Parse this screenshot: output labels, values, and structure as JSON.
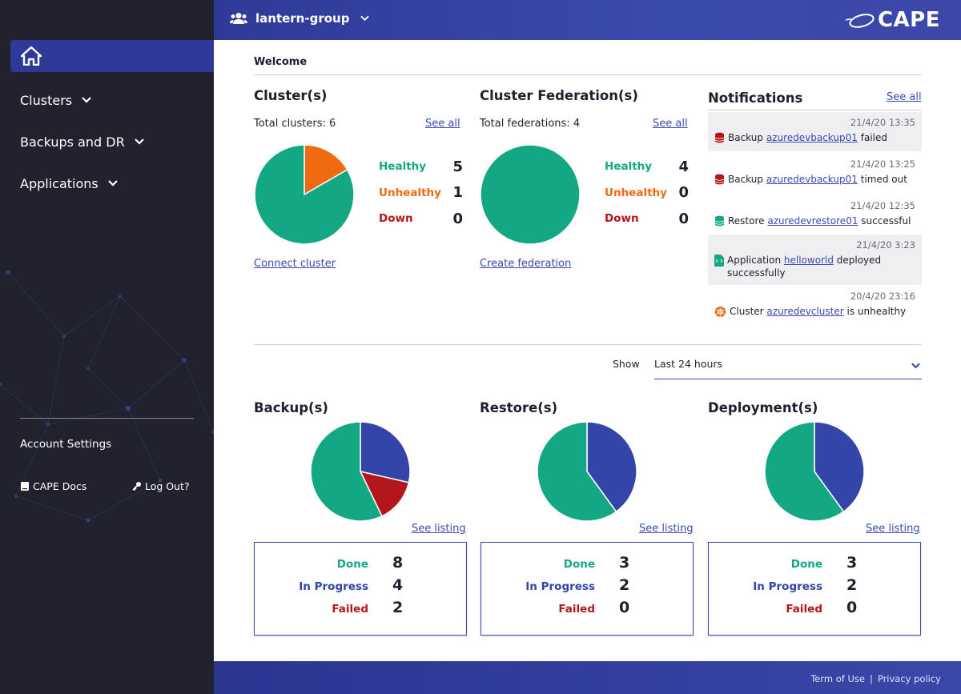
{
  "header": {
    "group_name": "lantern-group",
    "brand": "CAPE"
  },
  "sidebar": {
    "items": [
      {
        "label": "Clusters"
      },
      {
        "label": "Backups and DR"
      },
      {
        "label": "Applications"
      }
    ],
    "account_settings": "Account Settings",
    "docs": "CAPE Docs",
    "logout": "Log Out?"
  },
  "main": {
    "welcome": "Welcome",
    "clusters": {
      "title": "Cluster(s)",
      "total": "Total clusters: 6",
      "see_all": "See all",
      "action": "Connect cluster",
      "legend": [
        {
          "label": "Healthy",
          "value": "5"
        },
        {
          "label": "Unhealthy",
          "value": "1"
        },
        {
          "label": "Down",
          "value": "0"
        }
      ]
    },
    "federations": {
      "title": "Cluster Federation(s)",
      "total": "Total federations: 4",
      "see_all": "See all",
      "action": "Create federation",
      "legend": [
        {
          "label": "Healthy",
          "value": "4"
        },
        {
          "label": "Unhealthy",
          "value": "0"
        },
        {
          "label": "Down",
          "value": "0"
        }
      ]
    },
    "notifications": {
      "title": "Notifications",
      "see_all": "See all",
      "items": [
        {
          "time": "21/4/20 13:35",
          "prefix": "Backup",
          "link": "azuredevbackup01",
          "suffix": "failed",
          "icon": "database-icon"
        },
        {
          "time": "21/4/20 13:25",
          "prefix": "Backup",
          "link": "azuredevbackup01",
          "suffix": "timed out",
          "icon": "database-icon"
        },
        {
          "time": "21/4/20 12:35",
          "prefix": "Restore",
          "link": "azuredevrestore01",
          "suffix": "successful",
          "icon": "database-icon"
        },
        {
          "time": "21/4/20 3:23",
          "prefix": "Application",
          "link": "helloworld",
          "suffix": "deployed successfully",
          "icon": "code-file-icon"
        },
        {
          "time": "20/4/20 23:16",
          "prefix": "Cluster",
          "link": "azuredevcluster",
          "suffix": "is unhealthy",
          "icon": "helm-icon"
        }
      ]
    },
    "filter": {
      "label": "Show",
      "value": "Last 24 hours"
    },
    "backups": {
      "title": "Backup(s)",
      "see_listing": "See listing",
      "stats": [
        {
          "label": "Done",
          "value": "8"
        },
        {
          "label": "In Progress",
          "value": "4"
        },
        {
          "label": "Failed",
          "value": "2"
        }
      ]
    },
    "restores": {
      "title": "Restore(s)",
      "see_listing": "See listing",
      "stats": [
        {
          "label": "Done",
          "value": "3"
        },
        {
          "label": "In Progress",
          "value": "2"
        },
        {
          "label": "Failed",
          "value": "0"
        }
      ]
    },
    "deployments": {
      "title": "Deployment(s)",
      "see_listing": "See listing",
      "stats": [
        {
          "label": "Done",
          "value": "3"
        },
        {
          "label": "In Progress",
          "value": "2"
        },
        {
          "label": "Failed",
          "value": "0"
        }
      ]
    }
  },
  "footer": {
    "terms": "Term of Use",
    "separator": "|",
    "privacy": "Privacy policy"
  },
  "colors": {
    "healthy": "#13a883",
    "unhealthy": "#f06a11",
    "down": "#b3171b",
    "in_progress": "#3345a8",
    "accent": "#2f3a98",
    "sidebar_bg": "#22222e"
  },
  "chart_data": [
    {
      "type": "pie",
      "name": "clusters",
      "categories": [
        "Healthy",
        "Unhealthy",
        "Down"
      ],
      "values": [
        5,
        1,
        0
      ]
    },
    {
      "type": "pie",
      "name": "federations",
      "categories": [
        "Healthy",
        "Unhealthy",
        "Down"
      ],
      "values": [
        4,
        0,
        0
      ]
    },
    {
      "type": "pie",
      "name": "backups",
      "categories": [
        "Done",
        "In Progress",
        "Failed"
      ],
      "values": [
        8,
        4,
        2
      ]
    },
    {
      "type": "pie",
      "name": "restores",
      "categories": [
        "Done",
        "In Progress",
        "Failed"
      ],
      "values": [
        3,
        2,
        0
      ]
    },
    {
      "type": "pie",
      "name": "deployments",
      "categories": [
        "Done",
        "In Progress",
        "Failed"
      ],
      "values": [
        3,
        2,
        0
      ]
    }
  ]
}
